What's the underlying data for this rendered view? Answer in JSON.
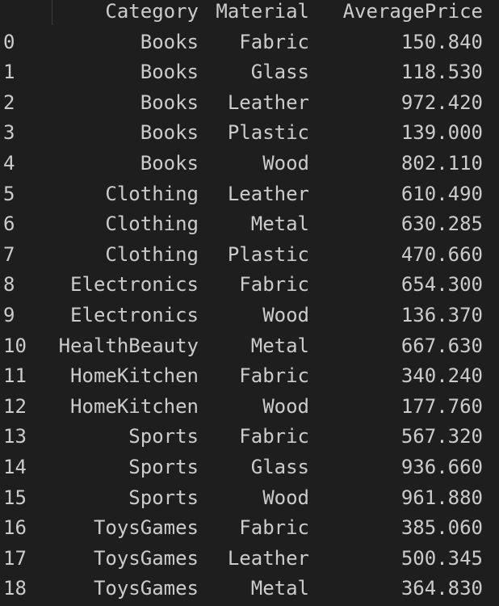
{
  "table": {
    "columns": [
      "Category",
      "Material",
      "AveragePrice"
    ],
    "rows": [
      {
        "index": "0",
        "category": "Books",
        "material": "Fabric",
        "price": "150.840"
      },
      {
        "index": "1",
        "category": "Books",
        "material": "Glass",
        "price": "118.530"
      },
      {
        "index": "2",
        "category": "Books",
        "material": "Leather",
        "price": "972.420"
      },
      {
        "index": "3",
        "category": "Books",
        "material": "Plastic",
        "price": "139.000"
      },
      {
        "index": "4",
        "category": "Books",
        "material": "Wood",
        "price": "802.110"
      },
      {
        "index": "5",
        "category": "Clothing",
        "material": "Leather",
        "price": "610.490"
      },
      {
        "index": "6",
        "category": "Clothing",
        "material": "Metal",
        "price": "630.285"
      },
      {
        "index": "7",
        "category": "Clothing",
        "material": "Plastic",
        "price": "470.660"
      },
      {
        "index": "8",
        "category": "Electronics",
        "material": "Fabric",
        "price": "654.300"
      },
      {
        "index": "9",
        "category": "Electronics",
        "material": "Wood",
        "price": "136.370"
      },
      {
        "index": "10",
        "category": "HealthBeauty",
        "material": "Metal",
        "price": "667.630"
      },
      {
        "index": "11",
        "category": "HomeKitchen",
        "material": "Fabric",
        "price": "340.240"
      },
      {
        "index": "12",
        "category": "HomeKitchen",
        "material": "Wood",
        "price": "177.760"
      },
      {
        "index": "13",
        "category": "Sports",
        "material": "Fabric",
        "price": "567.320"
      },
      {
        "index": "14",
        "category": "Sports",
        "material": "Glass",
        "price": "936.660"
      },
      {
        "index": "15",
        "category": "Sports",
        "material": "Wood",
        "price": "961.880"
      },
      {
        "index": "16",
        "category": "ToysGames",
        "material": "Fabric",
        "price": "385.060"
      },
      {
        "index": "17",
        "category": "ToysGames",
        "material": "Leather",
        "price": "500.345"
      },
      {
        "index": "18",
        "category": "ToysGames",
        "material": "Metal",
        "price": "364.830"
      }
    ]
  },
  "colors": {
    "background": "#1e1e1e",
    "text": "#cccccc"
  }
}
